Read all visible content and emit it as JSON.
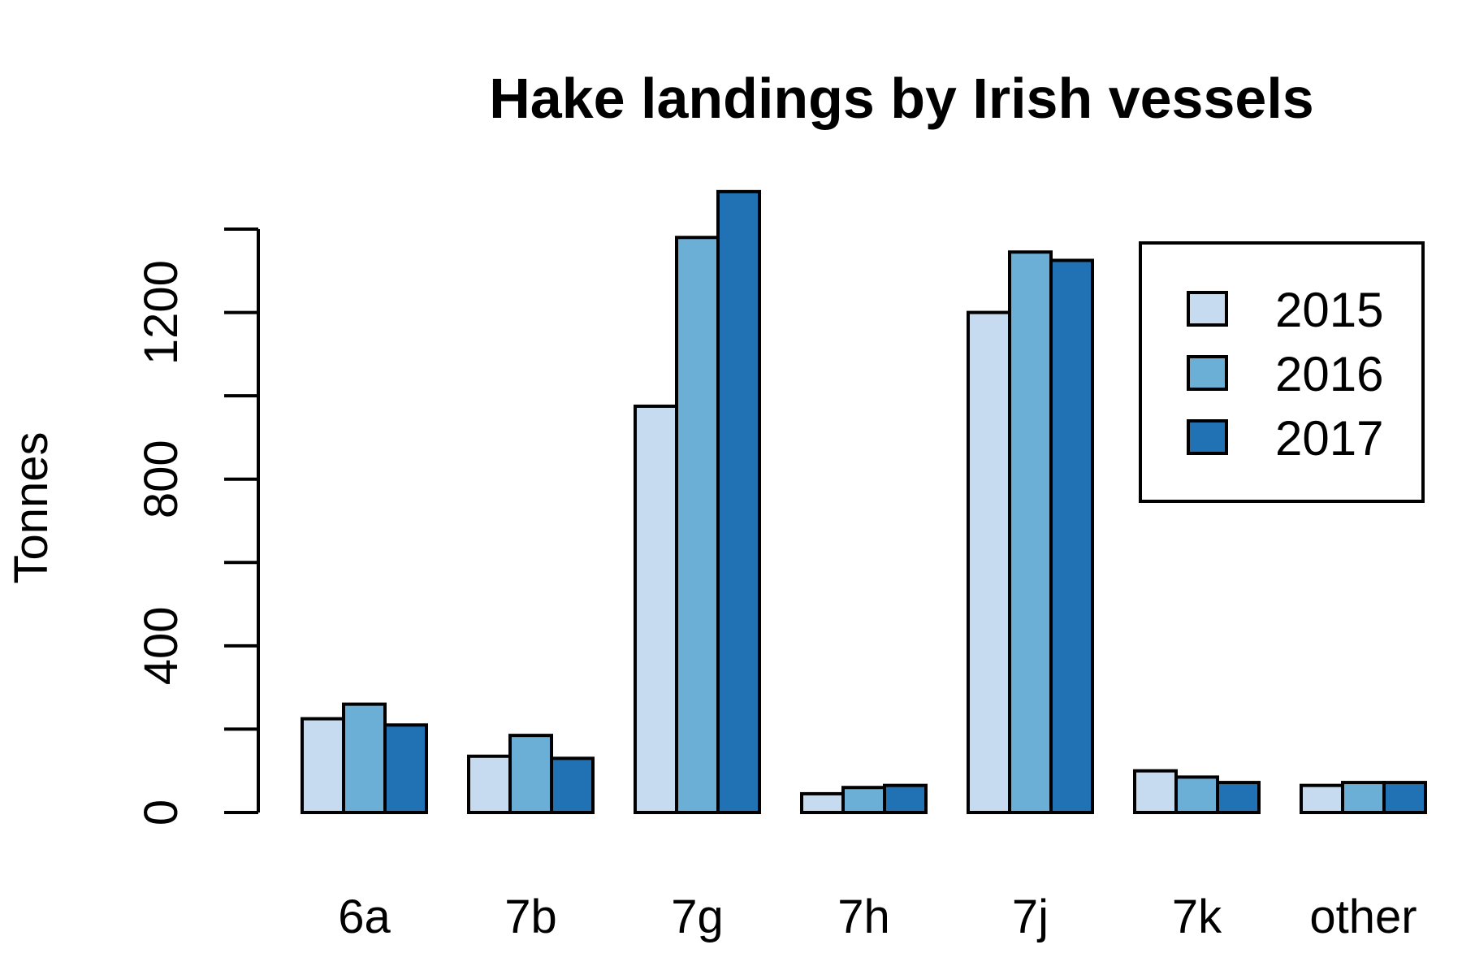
{
  "chart_data": {
    "type": "bar",
    "title": "Hake landings by Irish vessels",
    "xlabel": "",
    "ylabel": "Tonnes",
    "categories": [
      "6a",
      "7b",
      "7g",
      "7h",
      "7j",
      "7k",
      "other"
    ],
    "series": [
      {
        "name": "2015",
        "color": "#c6dbef",
        "values": [
          225,
          135,
          975,
          45,
          1200,
          100,
          65
        ]
      },
      {
        "name": "2016",
        "color": "#6baed6",
        "values": [
          260,
          185,
          1380,
          60,
          1345,
          85,
          72
        ]
      },
      {
        "name": "2017",
        "color": "#2171b5",
        "values": [
          210,
          130,
          1490,
          65,
          1325,
          72,
          72
        ]
      }
    ],
    "ylim": [
      0,
      1400
    ],
    "yticks": [
      0,
      200,
      400,
      600,
      800,
      1000,
      1200,
      1400
    ],
    "ytick_labels": [
      "0",
      "",
      "400",
      "",
      "800",
      "",
      "1200",
      ""
    ],
    "grid": false,
    "legend_position": "top-right"
  }
}
